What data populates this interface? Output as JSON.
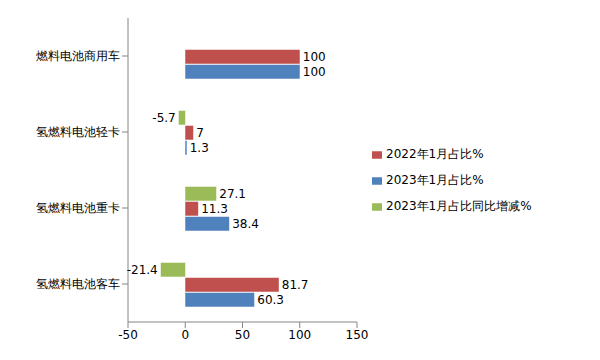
{
  "chart_data": {
    "type": "bar",
    "orientation": "horizontal",
    "categories": [
      "燃料电池商用车",
      "氢燃料电池轻卡",
      "氢燃料电池重卡",
      "氢燃料电池客车"
    ],
    "series": [
      {
        "name": "2023年1月占比同比增减%",
        "color": "#9bbb59",
        "values": [
          0,
          -5.7,
          27.1,
          -21.4
        ]
      },
      {
        "name": "2022年1月占比%",
        "color": "#c0504d",
        "values": [
          100,
          7,
          11.3,
          81.7
        ]
      },
      {
        "name": "2023年1月占比%",
        "color": "#4f81bd",
        "values": [
          100,
          1.3,
          38.4,
          60.3
        ]
      }
    ],
    "xlim": [
      -50,
      150
    ],
    "xticks": [
      -50,
      0,
      50,
      100,
      150
    ],
    "data_labels": true,
    "legend": "right",
    "grid": false
  }
}
